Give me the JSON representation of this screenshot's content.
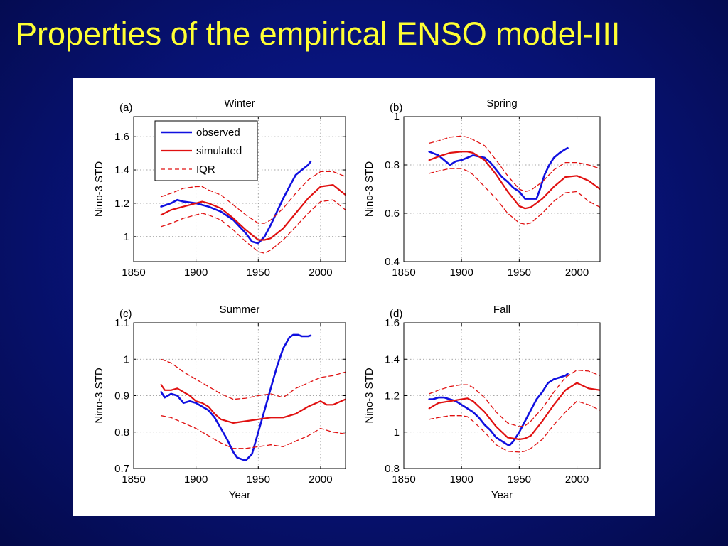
{
  "slide": {
    "title": "Properties of the empirical ENSO model-III"
  },
  "colors": {
    "observed": "#1010e0",
    "simulated": "#e01010",
    "iqr": "#e01010",
    "title": "#ffff33"
  },
  "chart_data": [
    {
      "type": "line",
      "letter": "(a)",
      "title": "Winter",
      "xlabel": "",
      "ylabel": "Nino-3 STD",
      "xlim": [
        1850,
        2020
      ],
      "ylim": [
        0.85,
        1.72
      ],
      "xticks": [
        1850,
        1900,
        1950,
        2000
      ],
      "yticks": [
        1,
        1.2,
        1.4,
        1.6
      ],
      "ytick_labels": [
        "1",
        "1.2",
        "1.4",
        "1.6"
      ],
      "grid": true,
      "legend": {
        "placement": "top-left",
        "entries": [
          "observed",
          "simulated",
          "IQR"
        ]
      },
      "series": [
        {
          "name": "observed",
          "style": "solid-blue",
          "x": [
            1872,
            1880,
            1885,
            1890,
            1900,
            1910,
            1920,
            1930,
            1940,
            1945,
            1950,
            1955,
            1960,
            1965,
            1970,
            1975,
            1980,
            1985,
            1990,
            1992
          ],
          "y": [
            1.18,
            1.2,
            1.22,
            1.21,
            1.2,
            1.18,
            1.15,
            1.1,
            1.02,
            0.97,
            0.96,
            1.0,
            1.07,
            1.15,
            1.23,
            1.3,
            1.37,
            1.4,
            1.43,
            1.45
          ]
        },
        {
          "name": "simulated",
          "style": "solid-red",
          "x": [
            1872,
            1880,
            1890,
            1900,
            1905,
            1910,
            1920,
            1930,
            1940,
            1950,
            1955,
            1960,
            1970,
            1980,
            1990,
            2000,
            2010,
            2020
          ],
          "y": [
            1.13,
            1.16,
            1.18,
            1.2,
            1.21,
            1.2,
            1.17,
            1.11,
            1.04,
            0.98,
            0.98,
            0.99,
            1.05,
            1.14,
            1.23,
            1.3,
            1.31,
            1.25
          ]
        },
        {
          "name": "IQR",
          "style": "dashed-red",
          "x": [
            1872,
            1880,
            1890,
            1900,
            1905,
            1910,
            1920,
            1930,
            1940,
            1950,
            1955,
            1960,
            1970,
            1980,
            1990,
            2000,
            2010,
            2020
          ],
          "y": [
            1.24,
            1.26,
            1.29,
            1.3,
            1.3,
            1.28,
            1.25,
            1.19,
            1.13,
            1.08,
            1.08,
            1.1,
            1.17,
            1.26,
            1.34,
            1.39,
            1.39,
            1.36
          ]
        },
        {
          "name": "IQR",
          "style": "dashed-red",
          "x": [
            1872,
            1880,
            1890,
            1900,
            1905,
            1910,
            1920,
            1930,
            1940,
            1950,
            1955,
            1960,
            1970,
            1980,
            1990,
            2000,
            2010,
            2020
          ],
          "y": [
            1.06,
            1.08,
            1.11,
            1.13,
            1.14,
            1.13,
            1.1,
            1.04,
            0.97,
            0.91,
            0.9,
            0.92,
            0.98,
            1.06,
            1.14,
            1.21,
            1.22,
            1.16
          ]
        }
      ]
    },
    {
      "type": "line",
      "letter": "(b)",
      "title": "Spring",
      "xlabel": "",
      "ylabel": "Nino-3 STD",
      "xlim": [
        1850,
        2020
      ],
      "ylim": [
        0.4,
        1.0
      ],
      "xticks": [
        1850,
        1900,
        1950,
        2000
      ],
      "yticks": [
        0.4,
        0.6,
        0.8,
        1
      ],
      "ytick_labels": [
        "0.4",
        "0.6",
        "0.8",
        "1"
      ],
      "grid": true,
      "series": [
        {
          "name": "observed",
          "style": "solid-blue",
          "x": [
            1872,
            1880,
            1885,
            1890,
            1895,
            1900,
            1905,
            1910,
            1915,
            1920,
            1925,
            1930,
            1935,
            1940,
            1945,
            1950,
            1955,
            1960,
            1965,
            1968,
            1972,
            1976,
            1980,
            1985,
            1990,
            1992
          ],
          "y": [
            0.855,
            0.84,
            0.82,
            0.8,
            0.815,
            0.82,
            0.83,
            0.84,
            0.835,
            0.83,
            0.81,
            0.78,
            0.75,
            0.73,
            0.705,
            0.69,
            0.66,
            0.66,
            0.66,
            0.7,
            0.76,
            0.8,
            0.83,
            0.85,
            0.865,
            0.87
          ]
        },
        {
          "name": "simulated",
          "style": "solid-red",
          "x": [
            1872,
            1880,
            1890,
            1900,
            1905,
            1910,
            1920,
            1930,
            1940,
            1950,
            1955,
            1960,
            1970,
            1980,
            1990,
            2000,
            2010,
            2020
          ],
          "y": [
            0.82,
            0.835,
            0.85,
            0.855,
            0.855,
            0.85,
            0.82,
            0.76,
            0.69,
            0.63,
            0.62,
            0.625,
            0.66,
            0.71,
            0.75,
            0.755,
            0.735,
            0.7
          ]
        },
        {
          "name": "IQR",
          "style": "dashed-red",
          "x": [
            1872,
            1880,
            1890,
            1900,
            1905,
            1910,
            1920,
            1930,
            1940,
            1950,
            1955,
            1960,
            1970,
            1980,
            1990,
            2000,
            2010,
            2020
          ],
          "y": [
            0.89,
            0.9,
            0.915,
            0.92,
            0.915,
            0.905,
            0.88,
            0.82,
            0.755,
            0.7,
            0.69,
            0.695,
            0.73,
            0.78,
            0.81,
            0.81,
            0.8,
            0.785
          ]
        },
        {
          "name": "IQR",
          "style": "dashed-red",
          "x": [
            1872,
            1880,
            1890,
            1900,
            1905,
            1910,
            1920,
            1930,
            1940,
            1950,
            1955,
            1960,
            1970,
            1980,
            1990,
            2000,
            2010,
            2020
          ],
          "y": [
            0.765,
            0.775,
            0.785,
            0.785,
            0.775,
            0.76,
            0.71,
            0.66,
            0.6,
            0.56,
            0.555,
            0.56,
            0.6,
            0.65,
            0.685,
            0.69,
            0.65,
            0.625
          ]
        }
      ]
    },
    {
      "type": "line",
      "letter": "(c)",
      "title": "Summer",
      "xlabel": "Year",
      "ylabel": "Nino-3 STD",
      "xlim": [
        1850,
        2020
      ],
      "ylim": [
        0.7,
        1.1
      ],
      "xticks": [
        1850,
        1900,
        1950,
        2000
      ],
      "yticks": [
        0.7,
        0.8,
        0.9,
        1,
        1.1
      ],
      "ytick_labels": [
        "0.7",
        "0.8",
        "0.9",
        "1",
        "1.1"
      ],
      "grid": true,
      "series": [
        {
          "name": "observed",
          "style": "solid-blue",
          "x": [
            1872,
            1875,
            1880,
            1885,
            1890,
            1895,
            1900,
            1905,
            1910,
            1915,
            1920,
            1925,
            1930,
            1933,
            1937,
            1940,
            1945,
            1950,
            1955,
            1960,
            1965,
            1970,
            1975,
            1978,
            1982,
            1985,
            1990,
            1992
          ],
          "y": [
            0.91,
            0.895,
            0.905,
            0.9,
            0.88,
            0.885,
            0.88,
            0.87,
            0.86,
            0.84,
            0.81,
            0.78,
            0.745,
            0.73,
            0.725,
            0.722,
            0.74,
            0.8,
            0.86,
            0.92,
            0.98,
            1.03,
            1.06,
            1.067,
            1.067,
            1.063,
            1.063,
            1.065
          ]
        },
        {
          "name": "simulated",
          "style": "solid-red",
          "x": [
            1872,
            1875,
            1880,
            1885,
            1890,
            1895,
            1900,
            1905,
            1910,
            1915,
            1920,
            1925,
            1930,
            1940,
            1950,
            1960,
            1970,
            1980,
            1990,
            2000,
            2005,
            2010,
            2020
          ],
          "y": [
            0.93,
            0.915,
            0.915,
            0.92,
            0.91,
            0.9,
            0.885,
            0.88,
            0.87,
            0.85,
            0.835,
            0.83,
            0.825,
            0.83,
            0.835,
            0.84,
            0.84,
            0.85,
            0.87,
            0.885,
            0.875,
            0.875,
            0.89
          ]
        },
        {
          "name": "IQR",
          "style": "dashed-red",
          "x": [
            1872,
            1880,
            1890,
            1900,
            1910,
            1920,
            1930,
            1940,
            1950,
            1960,
            1970,
            1980,
            1990,
            2000,
            2010,
            2020
          ],
          "y": [
            1.0,
            0.99,
            0.965,
            0.945,
            0.925,
            0.905,
            0.89,
            0.893,
            0.9,
            0.905,
            0.895,
            0.92,
            0.935,
            0.95,
            0.955,
            0.965
          ]
        },
        {
          "name": "IQR",
          "style": "dashed-red",
          "x": [
            1872,
            1880,
            1890,
            1900,
            1910,
            1920,
            1930,
            1940,
            1950,
            1960,
            1970,
            1980,
            1990,
            2000,
            2010,
            2020
          ],
          "y": [
            0.845,
            0.84,
            0.825,
            0.81,
            0.79,
            0.77,
            0.755,
            0.755,
            0.76,
            0.765,
            0.76,
            0.775,
            0.79,
            0.81,
            0.8,
            0.795
          ]
        }
      ]
    },
    {
      "type": "line",
      "letter": "(d)",
      "title": "Fall",
      "xlabel": "Year",
      "ylabel": "Nino-3 STD",
      "xlim": [
        1850,
        2020
      ],
      "ylim": [
        0.8,
        1.6
      ],
      "xticks": [
        1850,
        1900,
        1950,
        2000
      ],
      "yticks": [
        0.8,
        1,
        1.2,
        1.4,
        1.6
      ],
      "ytick_labels": [
        "0.8",
        "1",
        "1.2",
        "1.4",
        "1.6"
      ],
      "grid": true,
      "series": [
        {
          "name": "observed",
          "style": "solid-blue",
          "x": [
            1872,
            1875,
            1880,
            1885,
            1890,
            1895,
            1900,
            1905,
            1910,
            1915,
            1920,
            1925,
            1930,
            1935,
            1940,
            1942,
            1945,
            1950,
            1955,
            1960,
            1965,
            1970,
            1975,
            1980,
            1985,
            1990,
            1992
          ],
          "y": [
            1.18,
            1.18,
            1.19,
            1.19,
            1.18,
            1.17,
            1.15,
            1.13,
            1.11,
            1.08,
            1.04,
            1.01,
            0.97,
            0.95,
            0.93,
            0.93,
            0.95,
            1.0,
            1.06,
            1.12,
            1.18,
            1.22,
            1.27,
            1.29,
            1.3,
            1.31,
            1.32
          ]
        },
        {
          "name": "simulated",
          "style": "solid-red",
          "x": [
            1872,
            1880,
            1890,
            1900,
            1905,
            1910,
            1920,
            1930,
            1940,
            1950,
            1955,
            1960,
            1970,
            1980,
            1990,
            2000,
            2010,
            2020
          ],
          "y": [
            1.13,
            1.16,
            1.17,
            1.18,
            1.185,
            1.17,
            1.11,
            1.03,
            0.97,
            0.96,
            0.965,
            0.98,
            1.06,
            1.15,
            1.23,
            1.27,
            1.24,
            1.23
          ]
        },
        {
          "name": "IQR",
          "style": "dashed-red",
          "x": [
            1872,
            1880,
            1890,
            1900,
            1905,
            1910,
            1920,
            1930,
            1940,
            1950,
            1955,
            1960,
            1970,
            1980,
            1990,
            2000,
            2010,
            2020
          ],
          "y": [
            1.21,
            1.23,
            1.25,
            1.26,
            1.26,
            1.245,
            1.19,
            1.11,
            1.05,
            1.03,
            1.035,
            1.06,
            1.13,
            1.22,
            1.3,
            1.34,
            1.335,
            1.31
          ]
        },
        {
          "name": "IQR",
          "style": "dashed-red",
          "x": [
            1872,
            1880,
            1890,
            1900,
            1905,
            1910,
            1920,
            1930,
            1940,
            1950,
            1955,
            1960,
            1970,
            1980,
            1990,
            2000,
            2010,
            2020
          ],
          "y": [
            1.07,
            1.08,
            1.09,
            1.09,
            1.085,
            1.06,
            1.0,
            0.93,
            0.895,
            0.89,
            0.895,
            0.91,
            0.96,
            1.04,
            1.11,
            1.17,
            1.15,
            1.12
          ]
        }
      ]
    }
  ]
}
